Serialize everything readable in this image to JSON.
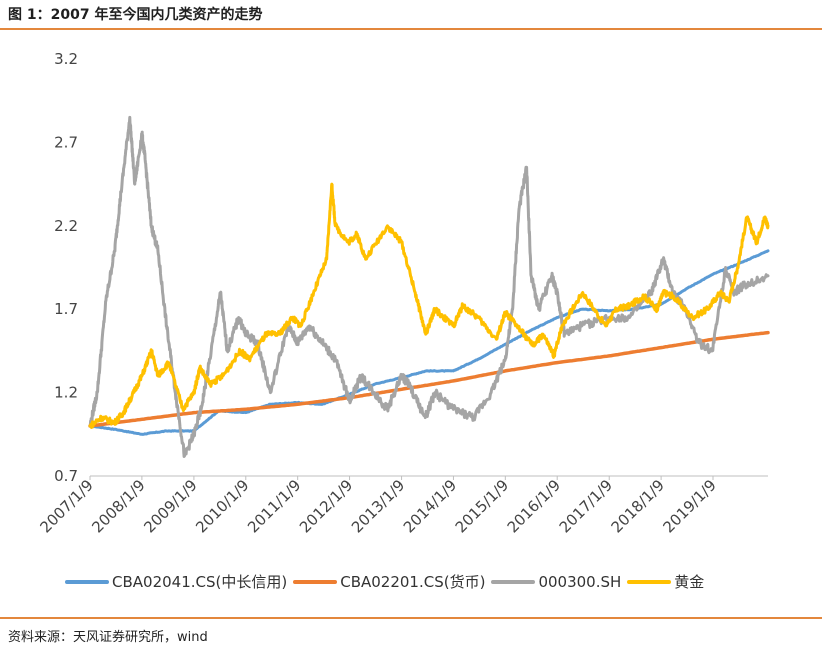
{
  "header": {
    "title": "图 1：2007 年至今国内几类资产的走势"
  },
  "footer": {
    "source": "资料来源：天风证券研究所，wind"
  },
  "chart_data": {
    "type": "line",
    "xlabel": "",
    "ylabel": "",
    "ylim": [
      0.7,
      3.2
    ],
    "yticks": [
      "0.7",
      "1.2",
      "1.7",
      "2.2",
      "2.7",
      "3.2"
    ],
    "xticks": [
      "2007/1/9",
      "2008/1/9",
      "2009/1/9",
      "2010/1/9",
      "2011/1/9",
      "2012/1/9",
      "2013/1/9",
      "2014/1/9",
      "2015/1/9",
      "2016/1/9",
      "2017/1/9",
      "2018/1/9",
      "2019/1/9"
    ],
    "x_start": "2007/1/9",
    "x_end": "2020/1/31",
    "grid": false,
    "legend_position": "bottom",
    "series": [
      {
        "name": "CBA02041.CS(中长信用)",
        "color": "#5b9bd5",
        "points": [
          [
            "2007/1/9",
            1.0
          ],
          [
            "2007/7/1",
            0.98
          ],
          [
            "2008/1/9",
            0.95
          ],
          [
            "2008/7/1",
            0.97
          ],
          [
            "2009/1/9",
            0.97
          ],
          [
            "2009/7/1",
            1.09
          ],
          [
            "2010/1/9",
            1.08
          ],
          [
            "2010/7/1",
            1.13
          ],
          [
            "2011/1/9",
            1.14
          ],
          [
            "2011/7/1",
            1.13
          ],
          [
            "2012/1/9",
            1.19
          ],
          [
            "2012/7/1",
            1.25
          ],
          [
            "2013/1/9",
            1.29
          ],
          [
            "2013/7/1",
            1.33
          ],
          [
            "2014/1/9",
            1.33
          ],
          [
            "2014/7/1",
            1.4
          ],
          [
            "2015/1/9",
            1.49
          ],
          [
            "2015/7/1",
            1.57
          ],
          [
            "2016/1/9",
            1.65
          ],
          [
            "2016/7/1",
            1.7
          ],
          [
            "2017/1/9",
            1.69
          ],
          [
            "2017/7/1",
            1.7
          ],
          [
            "2018/1/9",
            1.73
          ],
          [
            "2018/7/1",
            1.82
          ],
          [
            "2019/1/9",
            1.91
          ],
          [
            "2019/7/1",
            1.97
          ],
          [
            "2020/1/31",
            2.05
          ]
        ]
      },
      {
        "name": "CBA02201.CS(货币)",
        "color": "#ed7d31",
        "points": [
          [
            "2007/1/9",
            1.0
          ],
          [
            "2008/1/9",
            1.04
          ],
          [
            "2009/1/9",
            1.08
          ],
          [
            "2010/1/9",
            1.1
          ],
          [
            "2011/1/9",
            1.13
          ],
          [
            "2012/1/9",
            1.17
          ],
          [
            "2013/1/9",
            1.22
          ],
          [
            "2014/1/9",
            1.27
          ],
          [
            "2015/1/9",
            1.33
          ],
          [
            "2016/1/9",
            1.38
          ],
          [
            "2017/1/9",
            1.42
          ],
          [
            "2018/1/9",
            1.47
          ],
          [
            "2019/1/9",
            1.52
          ],
          [
            "2020/1/31",
            1.56
          ]
        ]
      },
      {
        "name": "000300.SH",
        "color": "#a5a5a5",
        "points": [
          [
            "2007/1/9",
            1.0
          ],
          [
            "2007/3/1",
            1.2
          ],
          [
            "2007/5/1",
            1.75
          ],
          [
            "2007/7/1",
            2.05
          ],
          [
            "2007/8/15",
            2.4
          ],
          [
            "2007/10/16",
            2.85
          ],
          [
            "2007/11/20",
            2.45
          ],
          [
            "2008/1/9",
            2.75
          ],
          [
            "2008/2/1",
            2.6
          ],
          [
            "2008/3/15",
            2.2
          ],
          [
            "2008/5/1",
            2.05
          ],
          [
            "2008/7/1",
            1.6
          ],
          [
            "2008/9/1",
            1.2
          ],
          [
            "2008/11/4",
            0.82
          ],
          [
            "2009/1/9",
            0.95
          ],
          [
            "2009/3/1",
            1.1
          ],
          [
            "2009/5/1",
            1.4
          ],
          [
            "2009/7/15",
            1.8
          ],
          [
            "2009/9/1",
            1.45
          ],
          [
            "2009/11/20",
            1.65
          ],
          [
            "2010/1/9",
            1.55
          ],
          [
            "2010/4/1",
            1.5
          ],
          [
            "2010/7/1",
            1.2
          ],
          [
            "2010/11/1",
            1.6
          ],
          [
            "2011/1/9",
            1.5
          ],
          [
            "2011/4/1",
            1.6
          ],
          [
            "2011/7/1",
            1.5
          ],
          [
            "2011/10/1",
            1.4
          ],
          [
            "2012/1/9",
            1.15
          ],
          [
            "2012/4/1",
            1.3
          ],
          [
            "2012/7/1",
            1.2
          ],
          [
            "2012/10/1",
            1.1
          ],
          [
            "2013/1/9",
            1.3
          ],
          [
            "2013/3/1",
            1.25
          ],
          [
            "2013/6/25",
            1.05
          ],
          [
            "2013/9/1",
            1.2
          ],
          [
            "2014/1/9",
            1.1
          ],
          [
            "2014/6/1",
            1.05
          ],
          [
            "2014/10/1",
            1.2
          ],
          [
            "2015/1/9",
            1.4
          ],
          [
            "2015/3/1",
            1.7
          ],
          [
            "2015/4/15",
            2.3
          ],
          [
            "2015/6/8",
            2.55
          ],
          [
            "2015/7/9",
            1.9
          ],
          [
            "2015/9/1",
            1.7
          ],
          [
            "2015/12/1",
            1.9
          ],
          [
            "2016/1/9",
            1.8
          ],
          [
            "2016/2/29",
            1.55
          ],
          [
            "2016/7/1",
            1.6
          ],
          [
            "2017/1/9",
            1.65
          ],
          [
            "2017/6/1",
            1.65
          ],
          [
            "2017/11/1",
            1.8
          ],
          [
            "2018/1/24",
            2.0
          ],
          [
            "2018/4/1",
            1.8
          ],
          [
            "2018/7/1",
            1.7
          ],
          [
            "2018/10/1",
            1.5
          ],
          [
            "2019/1/4",
            1.45
          ],
          [
            "2019/4/8",
            1.95
          ],
          [
            "2019/6/1",
            1.8
          ],
          [
            "2019/9/1",
            1.85
          ],
          [
            "2020/1/31",
            1.9
          ]
        ]
      },
      {
        "name": "黄金",
        "color": "#ffc000",
        "points": [
          [
            "2007/1/9",
            1.0
          ],
          [
            "2007/4/1",
            1.05
          ],
          [
            "2007/7/1",
            1.02
          ],
          [
            "2007/9/1",
            1.08
          ],
          [
            "2007/11/1",
            1.18
          ],
          [
            "2008/1/9",
            1.3
          ],
          [
            "2008/3/17",
            1.45
          ],
          [
            "2008/5/1",
            1.3
          ],
          [
            "2008/7/15",
            1.38
          ],
          [
            "2008/10/24",
            1.1
          ],
          [
            "2009/1/9",
            1.2
          ],
          [
            "2009/2/20",
            1.35
          ],
          [
            "2009/5/1",
            1.25
          ],
          [
            "2009/8/1",
            1.3
          ],
          [
            "2009/12/1",
            1.45
          ],
          [
            "2010/2/1",
            1.4
          ],
          [
            "2010/6/1",
            1.55
          ],
          [
            "2010/9/1",
            1.55
          ],
          [
            "2010/12/1",
            1.65
          ],
          [
            "2011/2/1",
            1.6
          ],
          [
            "2011/5/1",
            1.8
          ],
          [
            "2011/8/1",
            2.0
          ],
          [
            "2011/9/6",
            2.45
          ],
          [
            "2011/10/1",
            2.2
          ],
          [
            "2011/12/31",
            2.1
          ],
          [
            "2012/3/1",
            2.15
          ],
          [
            "2012/5/1",
            2.0
          ],
          [
            "2012/10/1",
            2.2
          ],
          [
            "2013/1/9",
            2.1
          ],
          [
            "2013/4/15",
            1.8
          ],
          [
            "2013/6/28",
            1.55
          ],
          [
            "2013/9/1",
            1.7
          ],
          [
            "2014/1/9",
            1.6
          ],
          [
            "2014/3/15",
            1.72
          ],
          [
            "2014/7/1",
            1.65
          ],
          [
            "2014/11/7",
            1.52
          ],
          [
            "2015/1/9",
            1.68
          ],
          [
            "2015/4/1",
            1.6
          ],
          [
            "2015/7/24",
            1.48
          ],
          [
            "2015/10/1",
            1.55
          ],
          [
            "2015/12/17",
            1.42
          ],
          [
            "2016/2/11",
            1.6
          ],
          [
            "2016/7/6",
            1.8
          ],
          [
            "2016/12/15",
            1.6
          ],
          [
            "2017/3/1",
            1.7
          ],
          [
            "2017/6/1",
            1.72
          ],
          [
            "2017/9/8",
            1.78
          ],
          [
            "2017/12/12",
            1.7
          ],
          [
            "2018/1/25",
            1.8
          ],
          [
            "2018/4/1",
            1.78
          ],
          [
            "2018/8/16",
            1.65
          ],
          [
            "2018/12/1",
            1.7
          ],
          [
            "2019/3/1",
            1.8
          ],
          [
            "2019/5/1",
            1.75
          ],
          [
            "2019/7/1",
            1.95
          ],
          [
            "2019/9/4",
            2.25
          ],
          [
            "2019/11/12",
            2.1
          ],
          [
            "2020/1/8",
            2.25
          ],
          [
            "2020/1/31",
            2.2
          ]
        ]
      }
    ]
  }
}
